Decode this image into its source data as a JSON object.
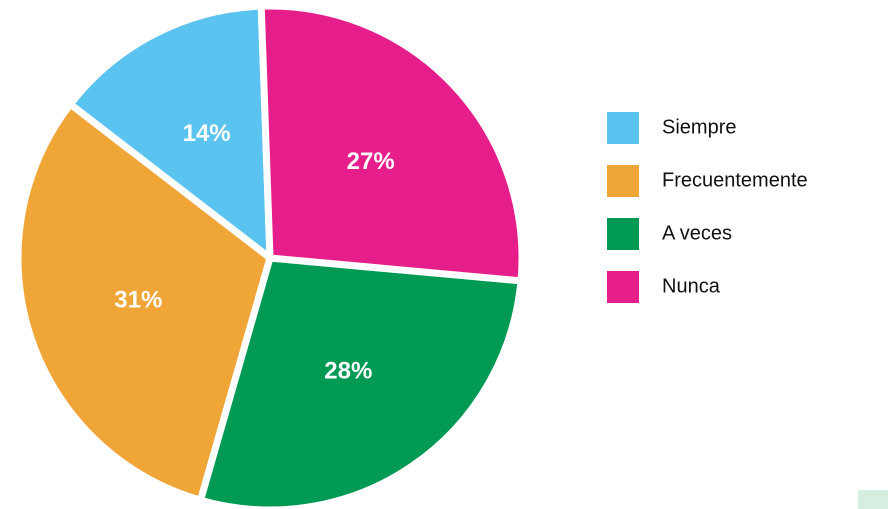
{
  "chart_data": {
    "type": "pie",
    "categories": [
      "Siempre",
      "Frecuentemente",
      "A veces",
      "Nunca"
    ],
    "values": [
      14,
      31,
      28,
      27
    ],
    "value_labels": [
      "14%",
      "31%",
      "28%",
      "27%"
    ],
    "colors": [
      "#5bc3f0",
      "#f0a637",
      "#009a54",
      "#e61e8c"
    ],
    "legend": "right"
  }
}
